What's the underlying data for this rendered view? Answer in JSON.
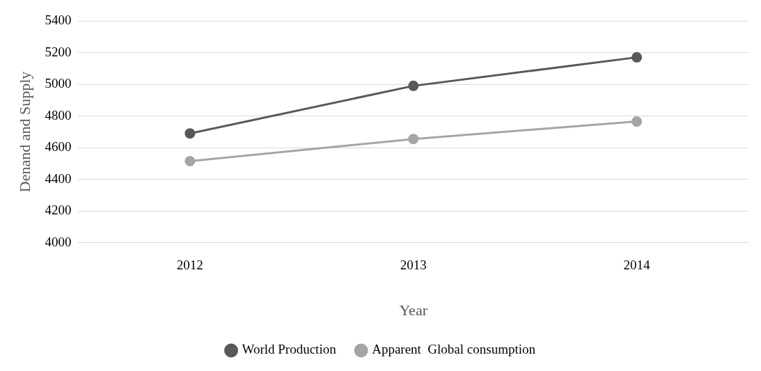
{
  "chart_data": {
    "type": "line",
    "xlabel": "Year",
    "ylabel": "Denand and Supply",
    "categories": [
      "2012",
      "2013",
      "2014"
    ],
    "series": [
      {
        "name": "World Production",
        "color": "#595959",
        "values": [
          4690,
          4990,
          5170
        ]
      },
      {
        "name": "Apparent  Global consumption",
        "color": "#a5a5a5",
        "values": [
          4515,
          4655,
          4765
        ]
      }
    ],
    "ylim": [
      4000,
      5400
    ],
    "yticks": [
      4000,
      4200,
      4400,
      4600,
      4800,
      5000,
      5200,
      5400
    ],
    "grid": "y",
    "legend": "bottom",
    "marker": "circle",
    "line_style": "solid"
  }
}
